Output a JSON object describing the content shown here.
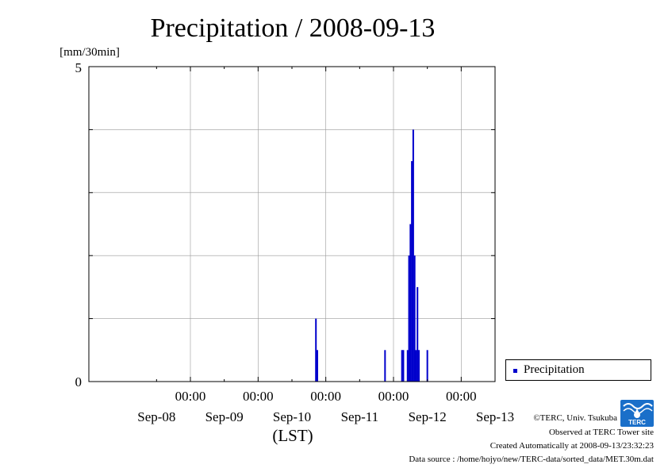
{
  "chart_data": {
    "type": "bar",
    "title": "Precipitation / 2008-09-13",
    "ylabel": "[mm/30min]",
    "xlabel": "(LST)",
    "ylim": [
      0,
      5
    ],
    "y_ticks": [
      "0",
      "5"
    ],
    "x_range": [
      "2008-09-07T12:00",
      "2008-09-13T12:00"
    ],
    "x_ticks": [
      {
        "time": "2008-09-08T12:00",
        "hour": "",
        "date": "Sep-08"
      },
      {
        "time": "2008-09-09T00:00",
        "hour": "00:00",
        "date": ""
      },
      {
        "time": "2008-09-09T12:00",
        "hour": "",
        "date": "Sep-09"
      },
      {
        "time": "2008-09-10T00:00",
        "hour": "00:00",
        "date": ""
      },
      {
        "time": "2008-09-10T12:00",
        "hour": "",
        "date": "Sep-10"
      },
      {
        "time": "2008-09-11T00:00",
        "hour": "00:00",
        "date": ""
      },
      {
        "time": "2008-09-11T12:00",
        "hour": "",
        "date": "Sep-11"
      },
      {
        "time": "2008-09-12T00:00",
        "hour": "00:00",
        "date": ""
      },
      {
        "time": "2008-09-12T12:00",
        "hour": "",
        "date": "Sep-12"
      },
      {
        "time": "2008-09-13T00:00",
        "hour": "00:00",
        "date": ""
      },
      {
        "time": "2008-09-13T12:00",
        "hour": "",
        "date": "Sep-13"
      }
    ],
    "grid": true,
    "legend_position": "bottom-right outside",
    "series": [
      {
        "name": "Precipitation",
        "color": "#0000cc",
        "points": [
          {
            "t": "2008-09-10T20:30",
            "v": 1.0
          },
          {
            "t": "2008-09-10T21:00",
            "v": 0.5
          },
          {
            "t": "2008-09-11T21:00",
            "v": 0.5
          },
          {
            "t": "2008-09-12T03:00",
            "v": 0.5
          },
          {
            "t": "2008-09-12T03:30",
            "v": 0.5
          },
          {
            "t": "2008-09-12T05:00",
            "v": 0.5
          },
          {
            "t": "2008-09-12T05:30",
            "v": 2.0
          },
          {
            "t": "2008-09-12T06:00",
            "v": 2.5
          },
          {
            "t": "2008-09-12T06:30",
            "v": 3.5
          },
          {
            "t": "2008-09-12T07:00",
            "v": 4.0
          },
          {
            "t": "2008-09-12T07:30",
            "v": 2.0
          },
          {
            "t": "2008-09-12T08:00",
            "v": 0.5
          },
          {
            "t": "2008-09-12T08:30",
            "v": 1.5
          },
          {
            "t": "2008-09-12T09:00",
            "v": 0.5
          },
          {
            "t": "2008-09-12T12:00",
            "v": 0.5
          }
        ]
      }
    ]
  },
  "legend": {
    "label": "Precipitation",
    "color": "#0000cc"
  },
  "footer": {
    "copyright": "©TERC, Univ. Tsukuba",
    "site": "Observed at TERC Tower site",
    "created": "Created Automatically at 2008-09-13/23:32:23",
    "source": "Data source : /home/hojyo/new/TERC-data/sorted_data/MET.30m.dat"
  },
  "logo": {
    "text": "TERC",
    "color": "#1a6fc9"
  }
}
